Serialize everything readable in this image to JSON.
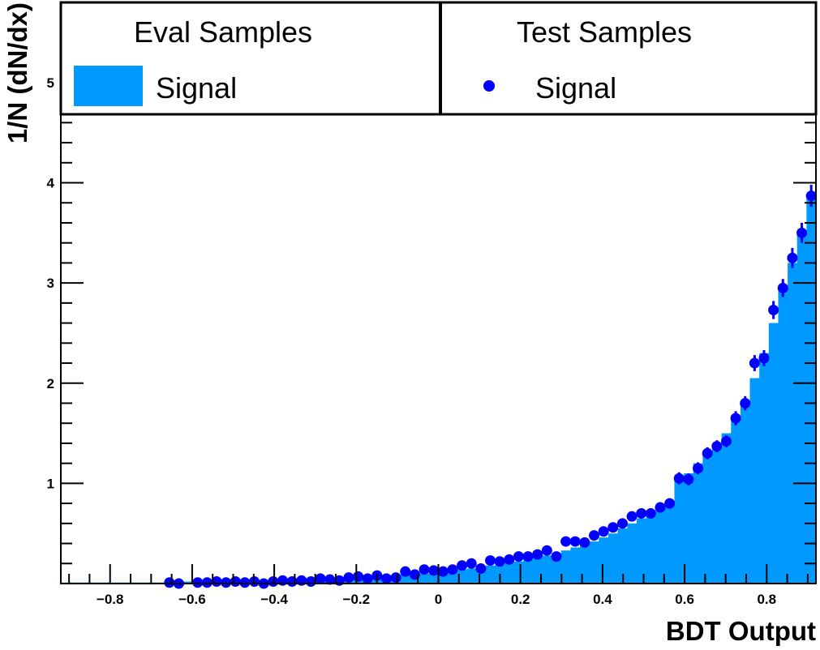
{
  "colors": {
    "signal_fill": "#0099ff",
    "test_points": "#0000ff",
    "axis": "#000000",
    "background": "#ffffff"
  },
  "legend": {
    "eval_header": "Eval Samples",
    "eval_entry": "Signal",
    "test_header": "Test Samples",
    "test_entry": "Signal"
  },
  "chart_data": {
    "type": "bar",
    "xlabel": "BDT Output",
    "ylabel": "1/N (dN/dx)",
    "xlim": [
      -0.92,
      0.92
    ],
    "ylim": [
      0,
      5.8
    ],
    "grid": false,
    "legend_placement": "top",
    "x_ticks": [
      -0.8,
      -0.6,
      -0.4,
      -0.2,
      0,
      0.2,
      0.4,
      0.6,
      0.8
    ],
    "x_tick_labels": [
      "−0.8",
      "−0.6",
      "−0.4",
      "−0.2",
      "0",
      "0.2",
      "0.4",
      "0.6",
      "0.8"
    ],
    "y_ticks": [
      1,
      2,
      3,
      4,
      5
    ],
    "y_tick_labels": [
      "1",
      "2",
      "3",
      "4",
      "5"
    ],
    "bin_edges_range": [
      -0.92,
      0.92
    ],
    "series": [
      {
        "name": "Signal",
        "kind": "histogram",
        "sample": "Eval Samples",
        "bin_centers": [
          -0.9085,
          -0.8855,
          -0.8625,
          -0.8395,
          -0.8165,
          -0.7935,
          -0.7705,
          -0.7475,
          -0.7245,
          -0.7015,
          -0.6785,
          -0.6555,
          -0.6325,
          -0.6095,
          -0.5865,
          -0.5635,
          -0.5405,
          -0.5175,
          -0.4945,
          -0.4715,
          -0.4485,
          -0.4255,
          -0.4025,
          -0.3795,
          -0.3565,
          -0.3335,
          -0.3105,
          -0.2875,
          -0.2645,
          -0.2415,
          -0.2185,
          -0.1955,
          -0.1725,
          -0.1495,
          -0.1265,
          -0.1035,
          -0.0805,
          -0.0575,
          -0.0345,
          -0.0115,
          0.0115,
          0.0345,
          0.0575,
          0.0805,
          0.1035,
          0.1265,
          0.1495,
          0.1725,
          0.1955,
          0.2185,
          0.2415,
          0.2645,
          0.2875,
          0.3105,
          0.3335,
          0.3565,
          0.3795,
          0.4025,
          0.4255,
          0.4485,
          0.4715,
          0.4945,
          0.5175,
          0.5405,
          0.5635,
          0.5865,
          0.6095,
          0.6325,
          0.6555,
          0.6785,
          0.7015,
          0.7245,
          0.7475,
          0.7705,
          0.7935,
          0.8165,
          0.8395,
          0.8625,
          0.8855,
          0.9085
        ],
        "values": [
          0.01,
          0.01,
          0.01,
          0.01,
          0.01,
          0.01,
          0.01,
          0.01,
          0.01,
          0.01,
          0.01,
          0.01,
          0.01,
          0.02,
          0.02,
          0.02,
          0.02,
          0.03,
          0.03,
          0.03,
          0.03,
          0.03,
          0.04,
          0.04,
          0.04,
          0.05,
          0.05,
          0.05,
          0.05,
          0.06,
          0.06,
          0.07,
          0.07,
          0.07,
          0.08,
          0.08,
          0.09,
          0.1,
          0.1,
          0.11,
          0.12,
          0.13,
          0.14,
          0.15,
          0.17,
          0.18,
          0.19,
          0.21,
          0.22,
          0.24,
          0.26,
          0.28,
          0.3,
          0.33,
          0.36,
          0.39,
          0.42,
          0.46,
          0.5,
          0.55,
          0.6,
          0.65,
          0.7,
          0.76,
          0.82,
          1.05,
          1.1,
          1.2,
          1.3,
          1.4,
          1.5,
          1.65,
          1.8,
          2.05,
          2.3,
          2.6,
          2.95,
          3.2,
          3.5,
          3.85
        ]
      },
      {
        "name": "Signal",
        "kind": "points",
        "sample": "Test Samples",
        "x": [
          -0.6555,
          -0.6325,
          -0.5865,
          -0.5635,
          -0.5405,
          -0.5175,
          -0.4945,
          -0.4715,
          -0.4485,
          -0.4255,
          -0.4025,
          -0.3795,
          -0.3565,
          -0.3335,
          -0.3105,
          -0.2875,
          -0.2645,
          -0.2415,
          -0.2185,
          -0.1955,
          -0.1725,
          -0.1495,
          -0.1265,
          -0.1035,
          -0.0805,
          -0.0575,
          -0.0345,
          -0.0115,
          0.0115,
          0.0345,
          0.0575,
          0.0805,
          0.1035,
          0.1265,
          0.1495,
          0.1725,
          0.1955,
          0.2185,
          0.2415,
          0.2645,
          0.2875,
          0.3105,
          0.3335,
          0.3565,
          0.3795,
          0.4025,
          0.4255,
          0.4485,
          0.4715,
          0.4945,
          0.5175,
          0.5405,
          0.5635,
          0.5865,
          0.6095,
          0.6325,
          0.6555,
          0.6785,
          0.7015,
          0.7245,
          0.7475,
          0.7705,
          0.7935,
          0.8165,
          0.8395,
          0.8625,
          0.8855,
          0.9085
        ],
        "y": [
          0.01,
          0.0,
          0.01,
          0.01,
          0.02,
          0.01,
          0.02,
          0.01,
          0.02,
          0.0,
          0.02,
          0.03,
          0.02,
          0.03,
          0.02,
          0.05,
          0.04,
          0.03,
          0.06,
          0.07,
          0.05,
          0.08,
          0.05,
          0.06,
          0.12,
          0.09,
          0.14,
          0.13,
          0.12,
          0.14,
          0.18,
          0.2,
          0.15,
          0.23,
          0.22,
          0.24,
          0.27,
          0.27,
          0.29,
          0.33,
          0.27,
          0.42,
          0.42,
          0.41,
          0.48,
          0.52,
          0.56,
          0.6,
          0.67,
          0.7,
          0.7,
          0.76,
          0.8,
          1.05,
          1.04,
          1.15,
          1.3,
          1.37,
          1.42,
          1.65,
          1.8,
          2.2,
          2.25,
          2.73,
          2.95,
          3.25,
          3.5,
          3.87
        ],
        "errors": [
          0.02,
          0.02,
          0.02,
          0.02,
          0.02,
          0.02,
          0.02,
          0.02,
          0.02,
          0.02,
          0.02,
          0.02,
          0.02,
          0.02,
          0.02,
          0.02,
          0.02,
          0.02,
          0.02,
          0.02,
          0.02,
          0.02,
          0.02,
          0.02,
          0.03,
          0.03,
          0.03,
          0.03,
          0.03,
          0.03,
          0.03,
          0.03,
          0.03,
          0.03,
          0.03,
          0.03,
          0.03,
          0.03,
          0.03,
          0.04,
          0.04,
          0.04,
          0.04,
          0.04,
          0.04,
          0.04,
          0.04,
          0.04,
          0.05,
          0.05,
          0.05,
          0.05,
          0.05,
          0.06,
          0.06,
          0.06,
          0.06,
          0.06,
          0.06,
          0.07,
          0.07,
          0.08,
          0.08,
          0.09,
          0.09,
          0.1,
          0.1,
          0.11
        ]
      }
    ]
  }
}
